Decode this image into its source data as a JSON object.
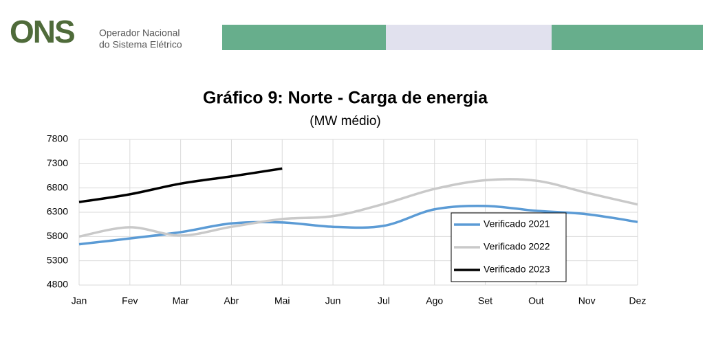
{
  "header": {
    "logo": "ONS",
    "org_line1": "Operador Nacional",
    "org_line2": "do Sistema Elétrico"
  },
  "chart_data": {
    "type": "line",
    "title": "Gráfico 9: Norte  -  Carga de energia",
    "subtitle": "(MW médio)",
    "categories": [
      "Jan",
      "Fev",
      "Mar",
      "Abr",
      "Mai",
      "Jun",
      "Jul",
      "Ago",
      "Set",
      "Out",
      "Nov",
      "Dez"
    ],
    "series": [
      {
        "name": "Verificado 2021",
        "color": "#5b9bd5",
        "values": [
          5640,
          5760,
          5890,
          6070,
          6090,
          6000,
          6020,
          6360,
          6430,
          6330,
          6260,
          6100
        ]
      },
      {
        "name": "Verificado 2022",
        "color": "#c9c9c9",
        "values": [
          5800,
          5990,
          5820,
          6000,
          6160,
          6220,
          6470,
          6780,
          6960,
          6950,
          6700,
          6460
        ]
      },
      {
        "name": "Verificado 2023",
        "color": "#000000",
        "values": [
          6510,
          6670,
          6890,
          7040,
          7200,
          null,
          null,
          null,
          null,
          null,
          null,
          null
        ]
      }
    ],
    "ylim": [
      4800,
      7800
    ],
    "yticks": [
      4800,
      5300,
      5800,
      6300,
      6800,
      7300,
      7800
    ],
    "grid": true,
    "smooth": true,
    "legend": "right"
  }
}
